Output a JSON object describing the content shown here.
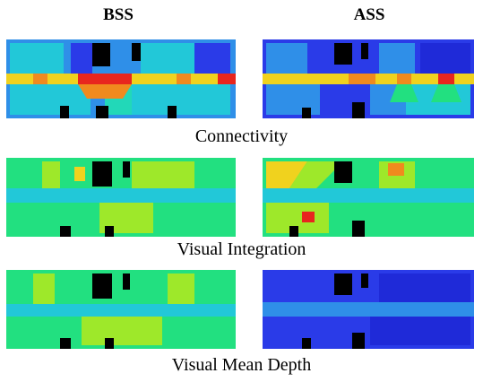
{
  "figure": {
    "columns": [
      {
        "id": "bss",
        "label": "BSS"
      },
      {
        "id": "ass",
        "label": "ASS"
      }
    ],
    "rows": [
      {
        "id": "connectivity",
        "label": "Connectivity"
      },
      {
        "id": "visual_integration",
        "label": "Visual Integration"
      },
      {
        "id": "visual_mean_depth",
        "label": "Visual Mean Depth"
      }
    ]
  },
  "colors": {
    "blue": "#2a3be8",
    "dark_blue": "#1f2ad8",
    "light_blue": "#2f8fe8",
    "cyan": "#22c8d8",
    "teal": "#22d8b8",
    "green": "#22e080",
    "lime": "#9ee82a",
    "yellow": "#f0d21e",
    "orange": "#f08a1e",
    "red": "#e8261e",
    "wall": "#000000"
  }
}
